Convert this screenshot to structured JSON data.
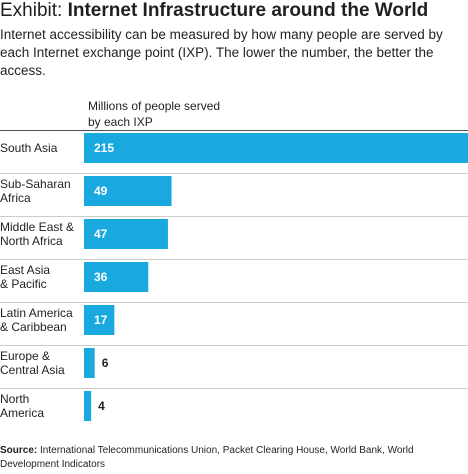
{
  "title_prefix": "Exhibit: ",
  "title": "Internet Infrastructure around the World",
  "subtitle": "Internet accessibility can be measured by how many people are served by each Internet exchange point (IXP). The lower the number, the better the access.",
  "column_header": "Millions of people served by each IXP",
  "source_label": "Source:",
  "source_text": " International Telecommunications Union, Packet Clearing House, World Bank, World Development Indicators",
  "colors": {
    "bar": "#1aa9df",
    "value_inside": "#ffffff",
    "value_outside": "#231f20",
    "separator": "#cccccc"
  },
  "chart_data": {
    "type": "bar",
    "orientation": "horizontal",
    "categories": [
      [
        "South Asia"
      ],
      [
        "Sub-Saharan",
        "Africa"
      ],
      [
        "Middle East &",
        "North Africa"
      ],
      [
        "East Asia",
        "& Pacific"
      ],
      [
        "Latin America",
        "& Caribbean"
      ],
      [
        "Europe &",
        "Central Asia"
      ],
      [
        "North",
        "America"
      ]
    ],
    "values": [
      215,
      49,
      47,
      36,
      17,
      6,
      4
    ],
    "xlim": [
      0,
      215
    ],
    "grid": false,
    "title": "Internet Infrastructure around the World"
  }
}
